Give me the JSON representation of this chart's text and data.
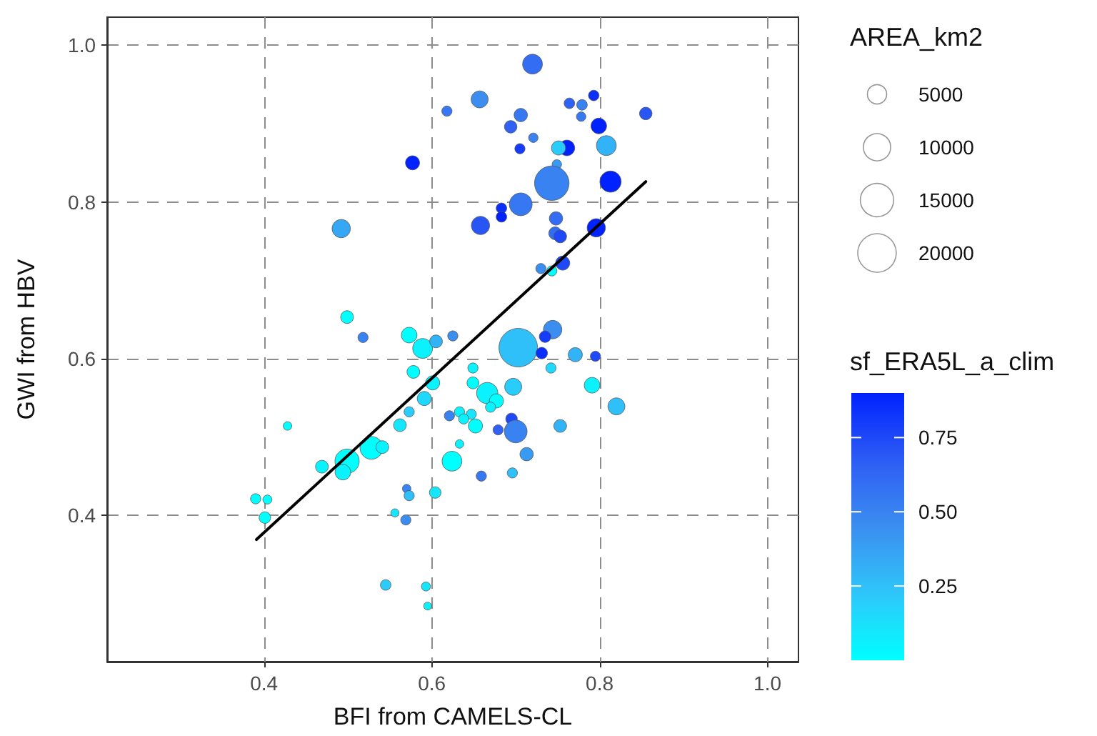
{
  "chart_data": {
    "type": "bubble",
    "xlabel": "BFI from CAMELS-CL",
    "ylabel": "GWI from HBV",
    "legend_title": "AREA_km2",
    "clabel": "sf_ERA5L_a_clim",
    "xlim": [
      0.213,
      1.037
    ],
    "ylim": [
      0.213,
      1.036
    ],
    "xticks": [
      0.4,
      0.6,
      0.8,
      {
        "value": 1,
        "label": "1.0"
      }
    ],
    "yticks": [
      0.4,
      0.6,
      0.8,
      {
        "value": 1,
        "label": "1.0"
      }
    ],
    "clim": [
      0,
      0.9
    ],
    "cticks": [
      0.25,
      {
        "value": 0.5,
        "label": "0.50"
      },
      0.75
    ],
    "size_legend": [
      5000,
      10000,
      15000,
      20000
    ],
    "grid": true,
    "series": [
      {
        "colors": [
          "#3578f2",
          "#0022ff",
          "#36a7f4",
          "#00ffff",
          "#326df3",
          "#3b8ef0",
          "#2f62f4",
          "#3883f1",
          "#0a2ffd",
          "#3578f2",
          "#2856f5",
          "#3578f2",
          "#2f62f4",
          "#3883f1",
          "#143cfa",
          "#0022ff",
          "#0022ff",
          "#2accfb",
          "#33b3f7",
          "#389af2",
          "#3883f1",
          "#0022ff",
          "#3578f2",
          "#0a2ffd",
          "#0022ff",
          "#2856f5",
          "#326df3",
          "#326df3",
          "#1e48f8",
          "#0022ff",
          "#1e48f8",
          "#3b8ef0",
          "#00ffff",
          "#3b8ef0",
          "#3b8ef0",
          "#3883f1",
          "#00ffff",
          "#0af2fe",
          "#33b3f7",
          "#00ffff",
          "#0af2fe",
          "#1fd9fc",
          "#2accfb",
          "#15e6fd",
          "#00ffff",
          "#00ffff",
          "#0af2fe",
          "#00ffff",
          "#0af2fe",
          "#0af2fe",
          "#00ffff",
          "#00ffff",
          "#00ffff",
          "#3883f1",
          "#30c0f9",
          "#15e6fd",
          "#15e6fd",
          "#3b8ef0",
          "#2accfb",
          "#15e6fd",
          "#0af2fe",
          "#30c0f9",
          "#143cfa",
          "#0a2ffd",
          "#33b3f7",
          "#1e48f8",
          "#1fd9fc",
          "#0af2fe",
          "#00ffff",
          "#2accfb",
          "#0af2fe",
          "#00ffff",
          "#0af2fe",
          "#0af2fe",
          "#30c0f9",
          "#3883f1",
          "#0af2fe",
          "#15e6fd",
          "#0af2fe",
          "#00ffff",
          "#1e48f8",
          "#2f62f4",
          "#3883f1",
          "#33b3f7",
          "#0af2fe",
          "#00ffff",
          "#389af2",
          "#3578f2",
          "#30c0f9"
        ],
        "x": [
          0.618,
          0.577,
          0.492,
          0.499,
          0.72,
          0.657,
          0.764,
          0.779,
          0.793,
          0.778,
          0.855,
          0.706,
          0.694,
          0.721,
          0.705,
          0.799,
          0.761,
          0.751,
          0.808,
          0.749,
          0.743,
          0.813,
          0.706,
          0.683,
          0.683,
          0.658,
          0.748,
          0.747,
          0.753,
          0.796,
          0.756,
          0.73,
          0.743,
          0.744,
          0.625,
          0.518,
          0.573,
          0.589,
          0.605,
          0.578,
          0.601,
          0.591,
          0.573,
          0.562,
          0.428,
          0.528,
          0.541,
          0.499,
          0.494,
          0.469,
          0.39,
          0.404,
          0.401,
          0.57,
          0.573,
          0.604,
          0.556,
          0.569,
          0.545,
          0.593,
          0.595,
          0.703,
          0.735,
          0.731,
          0.771,
          0.795,
          0.742,
          0.649,
          0.649,
          0.697,
          0.666,
          0.677,
          0.67,
          0.791,
          0.82,
          0.621,
          0.633,
          0.647,
          0.638,
          0.652,
          0.695,
          0.679,
          0.7,
          0.753,
          0.633,
          0.624,
          0.713,
          0.659,
          0.696
        ],
        "values": [
          0.916,
          0.85,
          0.766,
          0.653,
          0.976,
          0.931,
          0.926,
          0.924,
          0.936,
          0.909,
          0.913,
          0.911,
          0.896,
          0.882,
          0.868,
          0.897,
          0.869,
          0.869,
          0.872,
          0.848,
          0.824,
          0.826,
          0.797,
          0.792,
          0.781,
          0.77,
          0.779,
          0.76,
          0.756,
          0.767,
          0.722,
          0.715,
          0.712,
          0.637,
          0.629,
          0.627,
          0.63,
          0.613,
          0.622,
          0.583,
          0.569,
          0.549,
          0.532,
          0.515,
          0.514,
          0.486,
          0.487,
          0.469,
          0.455,
          0.462,
          0.421,
          0.42,
          0.397,
          0.434,
          0.425,
          0.429,
          0.403,
          0.394,
          0.311,
          0.309,
          0.284,
          0.614,
          0.628,
          0.607,
          0.605,
          0.603,
          0.588,
          0.588,
          0.569,
          0.564,
          0.556,
          0.546,
          0.538,
          0.566,
          0.539,
          0.527,
          0.532,
          0.529,
          0.523,
          0.514,
          0.523,
          0.509,
          0.507,
          0.514,
          0.491,
          0.469,
          0.478,
          0.45,
          0.454
        ],
        "sizes": [
          1400,
          2700,
          4500,
          2200,
          5300,
          3900,
          1500,
          1500,
          1500,
          1200,
          2100,
          2400,
          2100,
          1200,
          1400,
          3300,
          3300,
          2700,
          5300,
          1200,
          16000,
          6100,
          7000,
          1500,
          1500,
          4500,
          2400,
          2200,
          2200,
          4500,
          2700,
          1400,
          1400,
          4600,
          1400,
          1400,
          3300,
          5300,
          2200,
          2200,
          2700,
          2700,
          1400,
          2200,
          980,
          7000,
          2200,
          7900,
          3300,
          2200,
          1400,
          1100,
          1800,
          980,
          1400,
          1800,
          890,
          1400,
          1500,
          1100,
          830,
          20000,
          1800,
          1800,
          2700,
          1400,
          1400,
          1400,
          1900,
          3900,
          6100,
          2700,
          1400,
          3300,
          3900,
          1400,
          1400,
          1400,
          1400,
          2700,
          1800,
          1400,
          7000,
          2200,
          980,
          5300,
          2400,
          1400,
          1400
        ],
        "cvalues": [
          0.55,
          0.9,
          0.35,
          0,
          0.6,
          0.45,
          0.65,
          0.5,
          0.85,
          0.55,
          0.7,
          0.55,
          0.65,
          0.5,
          0.8,
          0.9,
          0.9,
          0.2,
          0.3,
          0.4,
          0.5,
          0.9,
          0.55,
          0.85,
          0.9,
          0.7,
          0.6,
          0.6,
          0.75,
          0.9,
          0.75,
          0.45,
          0,
          0.45,
          0.45,
          0.5,
          0,
          0.05,
          0.3,
          0,
          0.05,
          0.15,
          0.2,
          0.1,
          0,
          0,
          0.05,
          0,
          0.05,
          0.05,
          0,
          0,
          0,
          0.5,
          0.25,
          0.1,
          0.1,
          0.45,
          0.2,
          0.1,
          0.05,
          0.25,
          0.8,
          0.85,
          0.3,
          0.75,
          0.15,
          0.05,
          0,
          0.2,
          0.05,
          0,
          0.05,
          0.05,
          0.25,
          0.5,
          0.05,
          0.1,
          0.05,
          0,
          0.75,
          0.65,
          0.5,
          0.3,
          0.05,
          0,
          0.4,
          0.55,
          0.25
        ]
      },
      {
        "type": "line",
        "color": "#000000",
        "x": [
          0.391,
          0.855
        ],
        "values": [
          0.369,
          0.826
        ]
      }
    ]
  }
}
